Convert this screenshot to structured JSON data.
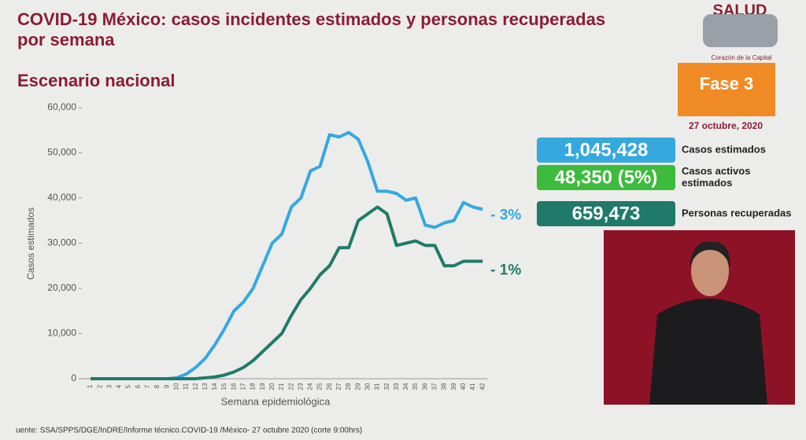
{
  "chart_data": {
    "type": "line",
    "title": "COVID-19 México: casos incidentes estimados y personas recuperadas por semana",
    "subtitle": "Escenario nacional",
    "x_label": "Semana epidemiológica",
    "y_label": "Casos estimados",
    "categories": [
      "1",
      "2",
      "3",
      "4",
      "5",
      "6",
      "7",
      "8",
      "9",
      "10",
      "11",
      "12",
      "13",
      "14",
      "15",
      "16",
      "17",
      "18",
      "19",
      "20",
      "21",
      "22",
      "23",
      "24",
      "25",
      "26",
      "27",
      "28",
      "29",
      "30",
      "31",
      "32",
      "33",
      "34",
      "35",
      "36",
      "37",
      "38",
      "39",
      "40",
      "41",
      "42"
    ],
    "series": [
      {
        "color": "#35a8e0",
        "values": [
          0,
          0,
          0,
          0,
          0,
          0,
          0,
          0,
          0,
          200,
          1000,
          2500,
          4500,
          7500,
          11000,
          15000,
          17000,
          20000,
          25000,
          30000,
          32000,
          38000,
          40000,
          46000,
          47000,
          54000,
          53500,
          54500,
          53000,
          48000,
          41500,
          41500,
          41000,
          39500,
          40000,
          34000,
          33500,
          34500,
          35000,
          39000,
          38000,
          37500
        ]
      },
      {
        "color": "#1f7a6a",
        "values": [
          0,
          0,
          0,
          0,
          0,
          0,
          0,
          0,
          0,
          0,
          0,
          0,
          200,
          400,
          800,
          1500,
          2500,
          4000,
          6000,
          8000,
          10000,
          14000,
          17500,
          20000,
          23000,
          25000,
          29000,
          29000,
          35000,
          36500,
          38000,
          36500,
          29500,
          30000,
          30500,
          29500,
          29500,
          25000,
          25000,
          26000,
          26000,
          26000
        ]
      }
    ],
    "annotations": [
      {
        "text": "- 3%",
        "color": "#35a8e0"
      },
      {
        "text": "- 1%",
        "color": "#1f7a6a"
      }
    ],
    "ylim": [
      0,
      60000
    ],
    "yticks": [
      0,
      {
        "value": 10000,
        "label": "10,000"
      },
      {
        "value": 20000,
        "label": "20,000"
      },
      {
        "value": 30000,
        "label": "30,000"
      },
      {
        "value": 40000,
        "label": "40,000"
      },
      {
        "value": 50000,
        "label": "50,000"
      },
      {
        "value": 60000,
        "label": "60,000"
      }
    ]
  },
  "panel": {
    "logo": "SALUD",
    "slogan": "Corazón de la Capital",
    "phase": "Fase 3",
    "date": "27 octubre, 2020",
    "stats": [
      {
        "value": "1,045,428",
        "label": "Casos estimados",
        "color": "#35a8e0"
      },
      {
        "value": "48,350 (5%)",
        "label": "Casos activos estimados",
        "color": "#3dbb3d"
      },
      {
        "value": "659,473",
        "label": "Personas recuperadas",
        "color": "#1f7a6a"
      }
    ]
  },
  "source": "uente: SSA/SPPS/DGE/InDRE/Informe técnico.COVID-19 /México- 27 octubre 2020 (corte 9:00hrs)"
}
